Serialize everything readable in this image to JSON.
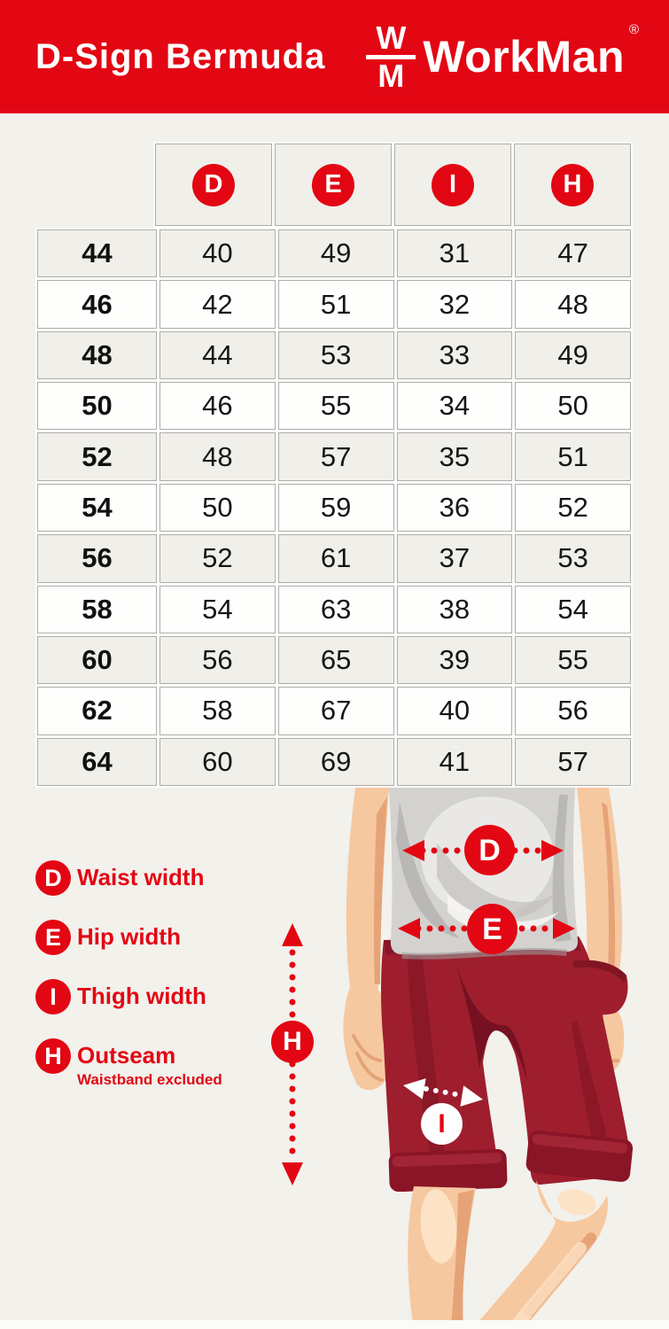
{
  "header": {
    "title": "D-Sign Bermuda",
    "brand": {
      "monogram_top": "W",
      "monogram_bottom": "M",
      "name": "WorkMan",
      "registered": "®"
    }
  },
  "chart_data": {
    "type": "table",
    "title": "D-Sign Bermuda",
    "columns": [
      "D",
      "E",
      "I",
      "H"
    ],
    "sizes": [
      "44",
      "46",
      "48",
      "50",
      "52",
      "54",
      "56",
      "58",
      "60",
      "62",
      "64"
    ],
    "rows": [
      [
        40,
        49,
        31,
        47
      ],
      [
        42,
        51,
        32,
        48
      ],
      [
        44,
        53,
        33,
        49
      ],
      [
        46,
        55,
        34,
        50
      ],
      [
        48,
        57,
        35,
        51
      ],
      [
        50,
        59,
        36,
        52
      ],
      [
        52,
        61,
        37,
        53
      ],
      [
        54,
        63,
        38,
        54
      ],
      [
        56,
        65,
        39,
        55
      ],
      [
        58,
        67,
        40,
        56
      ],
      [
        60,
        69,
        41,
        57
      ]
    ],
    "legend": {
      "D": "Waist width",
      "E": "Hip width",
      "I": "Thigh width",
      "H": "Outseam (Waistband excluded)"
    }
  },
  "legend": {
    "items": [
      {
        "badge": "D",
        "label": "Waist width"
      },
      {
        "badge": "E",
        "label": "Hip width"
      },
      {
        "badge": "I",
        "label": "Thigh width"
      },
      {
        "badge": "H",
        "label": "Outseam",
        "sublabel": "Waistband excluded"
      }
    ]
  },
  "diagram": {
    "markers": {
      "d": "D",
      "e": "E",
      "i": "I",
      "h": "H"
    }
  },
  "colors": {
    "accent_red": "#e30613",
    "page_bg": "#f2f1ec",
    "row_shade": "#f0efe9",
    "shorts_red": "#9e1e2e",
    "skin": "#f6c8a0",
    "shirt_gray": "#d3d2cf"
  }
}
